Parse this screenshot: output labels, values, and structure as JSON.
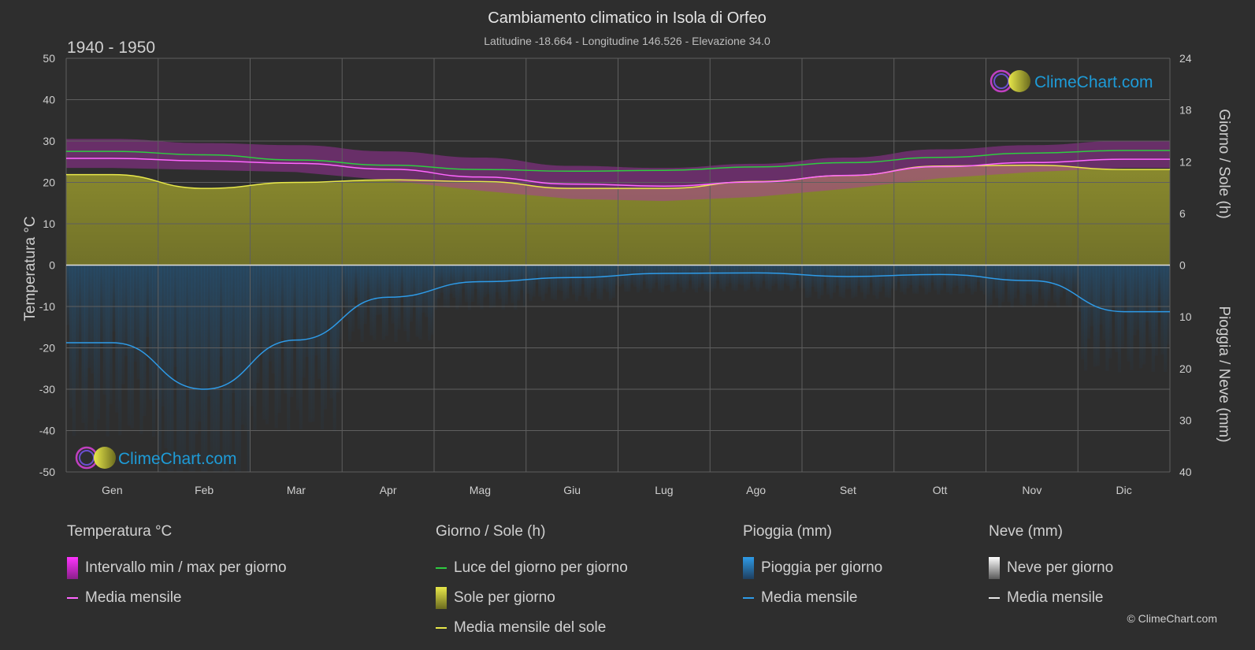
{
  "header": {
    "title": "Cambiamento climatico in Isola di Orfeo",
    "subtitle": "Latitudine -18.664 - Longitudine 146.526 - Elevazione 34.0",
    "period": "1940 - 1950"
  },
  "logo_text": "ClimeChart.com",
  "copyright": "© ClimeChart.com",
  "chart_data": {
    "type": "area",
    "categories": [
      "Gen",
      "Feb",
      "Mar",
      "Apr",
      "Mag",
      "Giu",
      "Lug",
      "Ago",
      "Set",
      "Ott",
      "Nov",
      "Dic"
    ],
    "y_left": {
      "label": "Temperatura °C",
      "range": [
        -50,
        50
      ],
      "ticks": [
        50,
        40,
        30,
        20,
        10,
        0,
        -10,
        -20,
        -30,
        -40,
        -50
      ]
    },
    "y_right_top": {
      "label": "Giorno / Sole (h)",
      "range": [
        0,
        24
      ],
      "ticks": [
        24,
        18,
        12,
        6,
        0
      ]
    },
    "y_right_bottom": {
      "label": "Pioggia / Neve (mm)",
      "range": [
        0,
        40
      ],
      "ticks": [
        0,
        10,
        20,
        30,
        40
      ]
    },
    "grid": true,
    "series": [
      {
        "name": "Luce del giorno per giorno",
        "unit": "h",
        "color": "#2ecc40",
        "values": [
          13.2,
          12.8,
          12.2,
          11.6,
          11.1,
          10.9,
          11.0,
          11.4,
          11.9,
          12.5,
          13.0,
          13.3
        ]
      },
      {
        "name": "Media mensile del sole",
        "unit": "h",
        "color": "#e8e84a",
        "values": [
          10.5,
          8.9,
          9.6,
          9.9,
          9.7,
          8.9,
          8.9,
          9.7,
          10.4,
          11.5,
          11.6,
          11.1
        ]
      },
      {
        "name": "Media mensile",
        "unit": "°C",
        "color": "#ff66ff",
        "values": [
          25.8,
          25.2,
          24.6,
          23.2,
          21.3,
          19.6,
          19.1,
          20.1,
          21.7,
          23.8,
          24.8,
          25.6
        ]
      },
      {
        "name": "Intervallo min / max per giorno",
        "unit": "°C",
        "color": "#cc33cc",
        "min": [
          23.5,
          23.0,
          22.5,
          20.5,
          18.0,
          16.0,
          15.5,
          16.5,
          18.5,
          21.0,
          22.5,
          23.5
        ],
        "max": [
          30.5,
          29.5,
          29.0,
          27.5,
          26.0,
          24.0,
          23.5,
          24.5,
          26.0,
          28.0,
          29.0,
          30.0
        ]
      },
      {
        "name": "Media mensile",
        "unit": "mm",
        "color": "#2e9be8",
        "values": [
          15.0,
          24.0,
          14.5,
          6.2,
          3.2,
          2.4,
          1.6,
          1.5,
          2.2,
          1.8,
          3.0,
          9.0
        ]
      }
    ]
  },
  "legend": {
    "temp": {
      "title": "Temperatura °C",
      "items": [
        "Intervallo min / max per giorno",
        "Media mensile"
      ]
    },
    "sun": {
      "title": "Giorno / Sole (h)",
      "items": [
        "Luce del giorno per giorno",
        "Sole per giorno",
        "Media mensile del sole"
      ]
    },
    "rain": {
      "title": "Pioggia (mm)",
      "items": [
        "Pioggia per giorno",
        "Media mensile"
      ]
    },
    "snow": {
      "title": "Neve (mm)",
      "items": [
        "Neve per giorno",
        "Media mensile"
      ]
    }
  },
  "colors": {
    "background": "#2e2e2e",
    "grid": "#5a5a5a",
    "sun_fill": "#8c8c2a",
    "rain_fill": "#1f5a8c"
  }
}
